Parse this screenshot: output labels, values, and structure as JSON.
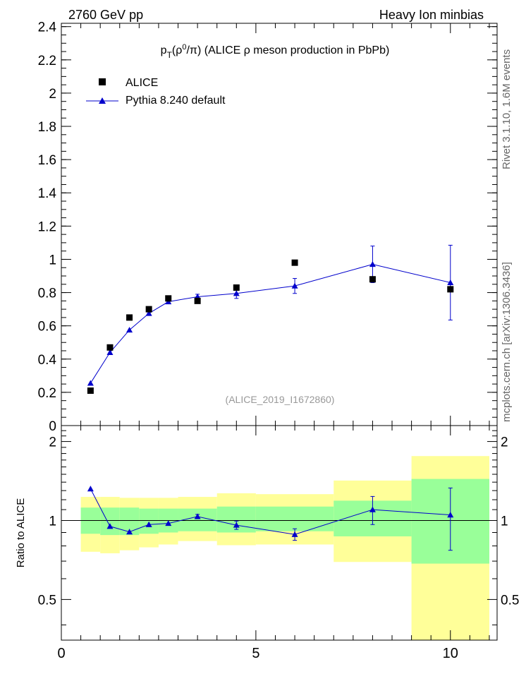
{
  "header": {
    "left": "2760 GeV pp",
    "right": "Heavy Ion minbias"
  },
  "side_labels": {
    "rivet": "Rivet 3.1.10,  1.6M events",
    "mcplots": "mcplots.cern.ch [arXiv:1306.3436]"
  },
  "chart_data": [
    {
      "type": "scatter",
      "title": "p_T(ρ^0/π) (ALICE ρ meson production in PbPb)",
      "title_parts": {
        "p": "p",
        "T": "T",
        "open": "(ρ",
        "sup": "0",
        "rest": "/π) (ALICE ρ meson production in PbPb)"
      },
      "watermark": "(ALICE_2019_I1672860)",
      "xlim": [
        0,
        11.2
      ],
      "ylim": [
        0,
        2.42
      ],
      "yticks": [
        0,
        0.2,
        0.4,
        0.6,
        0.8,
        1,
        1.2,
        1.4,
        1.6,
        1.8,
        2,
        2.2,
        2.4
      ],
      "ytick_labels": [
        "0",
        "0.2",
        "0.4",
        "0.6",
        "0.8",
        "1",
        "1.2",
        "1.4",
        "1.6",
        "1.8",
        "2",
        "2.2",
        "2.4"
      ],
      "legend": {
        "position": "top-left",
        "entries": [
          "ALICE",
          "Pythia 8.240 default"
        ]
      },
      "series": [
        {
          "name": "ALICE",
          "marker": "square",
          "color": "#000000",
          "x": [
            0.75,
            1.25,
            1.75,
            2.25,
            2.75,
            3.5,
            4.5,
            6.0,
            8.0,
            10.0
          ],
          "y": [
            0.21,
            0.47,
            0.65,
            0.7,
            0.765,
            0.75,
            0.83,
            0.98,
            0.88,
            0.82
          ],
          "yerr": [
            0.005,
            0.005,
            0.005,
            0.005,
            0.005,
            0.005,
            0.005,
            0.005,
            0.02,
            0.02
          ]
        },
        {
          "name": "Pythia 8.240 default",
          "marker": "triangle",
          "color": "#0000cc",
          "x": [
            0.75,
            1.25,
            1.75,
            2.25,
            2.75,
            3.5,
            4.5,
            6.0,
            8.0,
            10.0
          ],
          "y": [
            0.255,
            0.44,
            0.575,
            0.675,
            0.745,
            0.775,
            0.795,
            0.84,
            0.97,
            0.86
          ],
          "yerr": [
            0.005,
            0.008,
            0.008,
            0.008,
            0.01,
            0.015,
            0.03,
            0.045,
            0.11,
            0.225
          ]
        }
      ]
    },
    {
      "type": "scatter",
      "ylabel": "Ratio to ALICE",
      "xlim": [
        0,
        11.2
      ],
      "ylim": [
        0.35,
        2.3
      ],
      "yscale": "log",
      "xticks": [
        0,
        5,
        10
      ],
      "xtick_labels": [
        "0",
        "5",
        "10"
      ],
      "yticks": [
        0.5,
        1,
        2
      ],
      "ytick_labels": [
        "0.5",
        "1",
        "2"
      ],
      "bands": {
        "bins": [
          [
            0.5,
            1.0
          ],
          [
            1.0,
            1.5
          ],
          [
            1.5,
            2.0
          ],
          [
            2.0,
            2.5
          ],
          [
            2.5,
            3.0
          ],
          [
            3.0,
            4.0
          ],
          [
            4.0,
            5.0
          ],
          [
            5.0,
            7.0
          ],
          [
            7.0,
            9.0
          ],
          [
            9.0,
            11.0
          ]
        ],
        "stat_low": [
          0.89,
          0.88,
          0.88,
          0.89,
          0.9,
          0.91,
          0.9,
          0.91,
          0.87,
          0.685
        ],
        "stat_high": [
          1.12,
          1.12,
          1.12,
          1.11,
          1.11,
          1.11,
          1.13,
          1.13,
          1.19,
          1.44
        ],
        "total_low": [
          0.76,
          0.75,
          0.77,
          0.79,
          0.81,
          0.835,
          0.805,
          0.81,
          0.695,
          0.35
        ],
        "total_high": [
          1.23,
          1.23,
          1.22,
          1.22,
          1.22,
          1.23,
          1.27,
          1.26,
          1.42,
          1.76
        ],
        "stat_color": "#99ff99",
        "total_color": "#ffff99"
      },
      "series": [
        {
          "name": "Pythia 8.240 default",
          "marker": "triangle",
          "color": "#0000cc",
          "x": [
            0.75,
            1.25,
            1.75,
            2.25,
            2.75,
            3.5,
            4.5,
            6.0,
            8.0,
            10.0
          ],
          "y": [
            1.32,
            0.95,
            0.905,
            0.965,
            0.975,
            1.035,
            0.96,
            0.885,
            1.1,
            1.05
          ],
          "yerr": [
            0.01,
            0.012,
            0.012,
            0.012,
            0.015,
            0.02,
            0.035,
            0.045,
            0.135,
            0.28
          ]
        }
      ]
    }
  ]
}
